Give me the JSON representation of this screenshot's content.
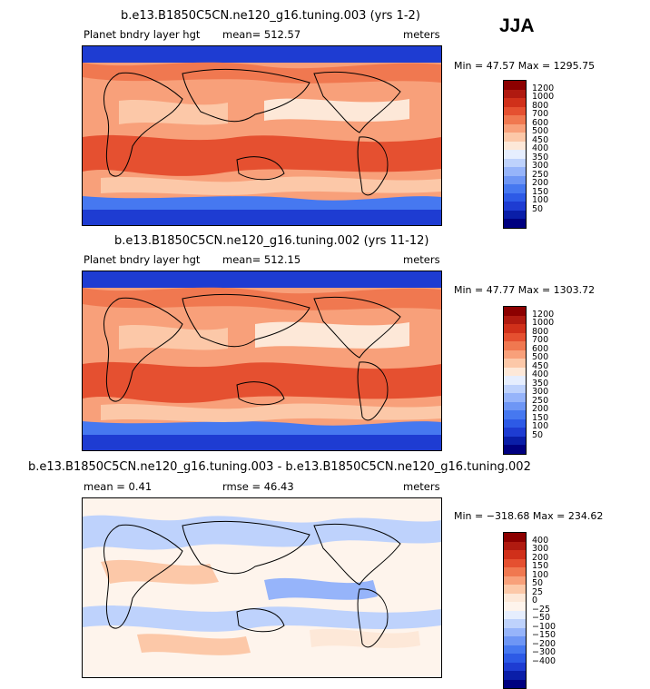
{
  "season": "JJA",
  "colors": {
    "seq": [
      "#000080",
      "#0a1ea8",
      "#1e3cd2",
      "#2d5ae6",
      "#4678f0",
      "#6e96f5",
      "#96b4fa",
      "#bed2fc",
      "#e6eefe",
      "#fde8d8",
      "#fcc8a8",
      "#f8a07a",
      "#f07850",
      "#e55030",
      "#d0301a",
      "#b01a10",
      "#8c0000"
    ],
    "diff": [
      "#000080",
      "#0a1ea8",
      "#1e3cd2",
      "#2d5ae6",
      "#4678f0",
      "#6e96f5",
      "#96b4fa",
      "#bed2fc",
      "#e6eefe",
      "#fef4ec",
      "#fde8d8",
      "#fcc8a8",
      "#f8a07a",
      "#f07850",
      "#e55030",
      "#d0301a",
      "#b01a10",
      "#8c0000"
    ]
  },
  "panels": [
    {
      "title": "b.e13.B1850C5CN.ne120_g16.tuning.003 (yrs 1-2)",
      "variable": "Planet bndry layer hgt",
      "mean": "mean= 512.57",
      "units": "meters",
      "minmax": "Min =  47.57 Max = 1295.75",
      "ticks": [
        "1200",
        "1000",
        "800",
        "700",
        "600",
        "500",
        "450",
        "400",
        "350",
        "300",
        "250",
        "200",
        "150",
        "100",
        "50"
      ]
    },
    {
      "title": "b.e13.B1850C5CN.ne120_g16.tuning.002 (yrs 11-12)",
      "variable": "Planet bndry layer hgt",
      "mean": "mean= 512.15",
      "units": "meters",
      "minmax": "Min =  47.77 Max = 1303.72",
      "ticks": [
        "1200",
        "1000",
        "800",
        "700",
        "600",
        "500",
        "450",
        "400",
        "350",
        "300",
        "250",
        "200",
        "150",
        "100",
        "50"
      ]
    },
    {
      "title": "b.e13.B1850C5CN.ne120_g16.tuning.003 - b.e13.B1850C5CN.ne120_g16.tuning.002",
      "mean": "mean =    0.41",
      "rmse": "rmse =   46.43",
      "units": "meters",
      "minmax": "Min = −318.68 Max = 234.62",
      "ticks": [
        "400",
        "300",
        "200",
        "150",
        "100",
        "50",
        "25",
        "0",
        "−25",
        "−50",
        "−100",
        "−150",
        "−200",
        "−300",
        "−400"
      ]
    }
  ]
}
